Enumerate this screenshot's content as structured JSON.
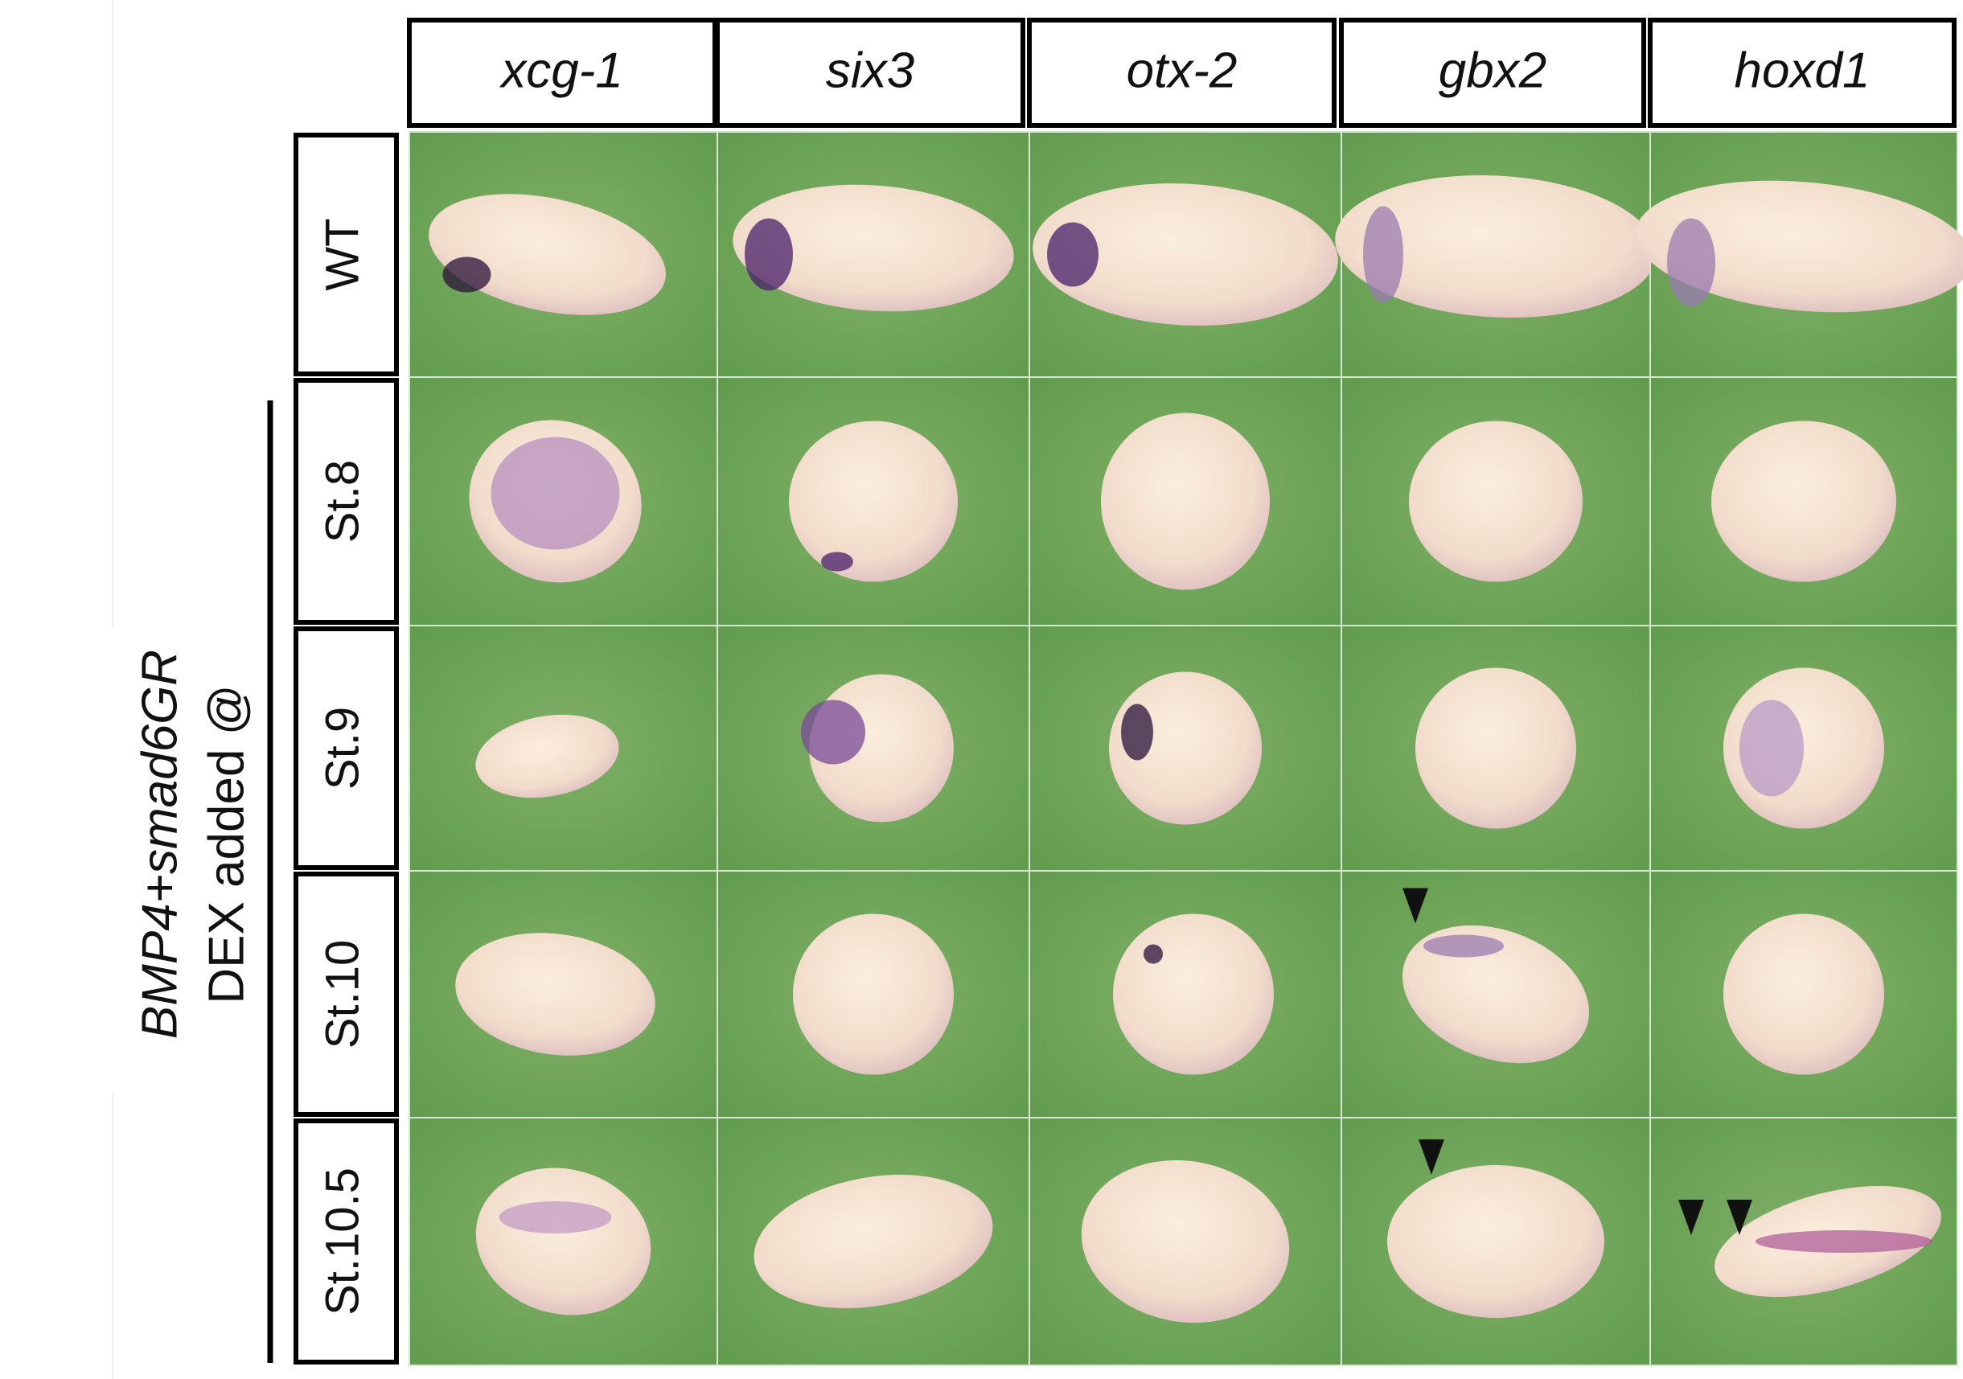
{
  "header": {
    "columns": [
      "xcg-1",
      "six3",
      "otx-2",
      "gbx2",
      "hoxd1"
    ]
  },
  "rows": [
    "WT",
    "St.8",
    "St.9",
    "St.10",
    "St.10.5"
  ],
  "side_label": {
    "lines": [
      "BMP4+smad6GR",
      "DEX added @"
    ]
  }
}
